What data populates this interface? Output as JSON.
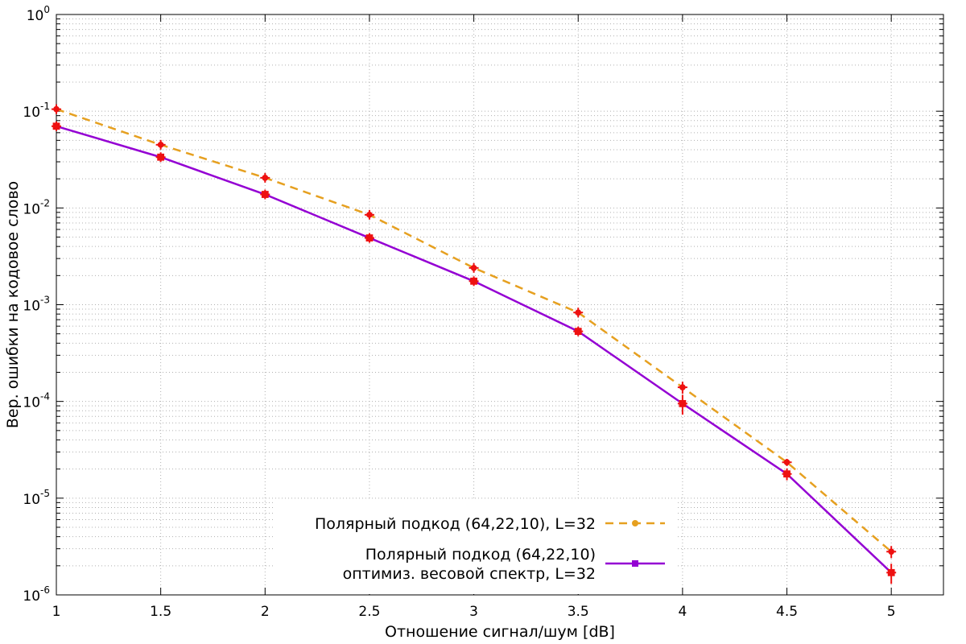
{
  "chart_data": {
    "type": "line",
    "xlabel": "Отношение сигнал/шум [dB]",
    "ylabel": "Вер. ошибки на кодовое слово",
    "xlim": [
      1,
      5.25
    ],
    "ylim": [
      1e-06,
      1
    ],
    "yscale": "log",
    "grid": true,
    "x_ticks": [
      "1",
      "1.5",
      "2",
      "2.5",
      "3",
      "3.5",
      "4",
      "4.5",
      "5"
    ],
    "y_ticks": [
      {
        "base": "10",
        "exp": "0"
      },
      {
        "base": "10",
        "exp": "-1"
      },
      {
        "base": "10",
        "exp": "-2"
      },
      {
        "base": "10",
        "exp": "-3"
      },
      {
        "base": "10",
        "exp": "-4"
      },
      {
        "base": "10",
        "exp": "-5"
      },
      {
        "base": "10",
        "exp": "-6"
      }
    ],
    "legend_position": "bottom-right",
    "series": [
      {
        "name": "Полярный подкод (64,22,10), L=32",
        "color": "#e6a020",
        "marker_color": "#ee1111",
        "style": "dashed",
        "marker": "circle",
        "x": [
          1,
          1.5,
          2,
          2.5,
          3,
          3.5,
          4,
          4.5,
          5
        ],
        "y": [
          0.105,
          0.045,
          0.0205,
          0.0085,
          0.0024,
          0.00083,
          0.00014,
          2.35e-05,
          2.8e-06
        ],
        "error": [
          0,
          0,
          0,
          0,
          0,
          0,
          2e-05,
          2e-06,
          4e-07
        ]
      },
      {
        "name": "Полярный подкод (64,22,10)\nоптимиз. весовой спектр, L=32",
        "name_lines": [
          "Полярный подкод (64,22,10)",
          "оптимиз. весовой спектр, L=32"
        ],
        "color": "#9400d3",
        "marker_color": "#ee1111",
        "style": "solid",
        "marker": "square",
        "x": [
          1,
          1.5,
          2,
          2.5,
          3,
          3.5,
          4,
          4.5,
          5
        ],
        "y": [
          0.07,
          0.0335,
          0.0138,
          0.0049,
          0.00175,
          0.00053,
          9.5e-05,
          1.78e-05,
          1.7e-06
        ],
        "error": [
          0,
          0,
          0,
          0,
          0,
          0,
          2.2e-05,
          2.5e-06,
          4e-07
        ]
      }
    ]
  }
}
